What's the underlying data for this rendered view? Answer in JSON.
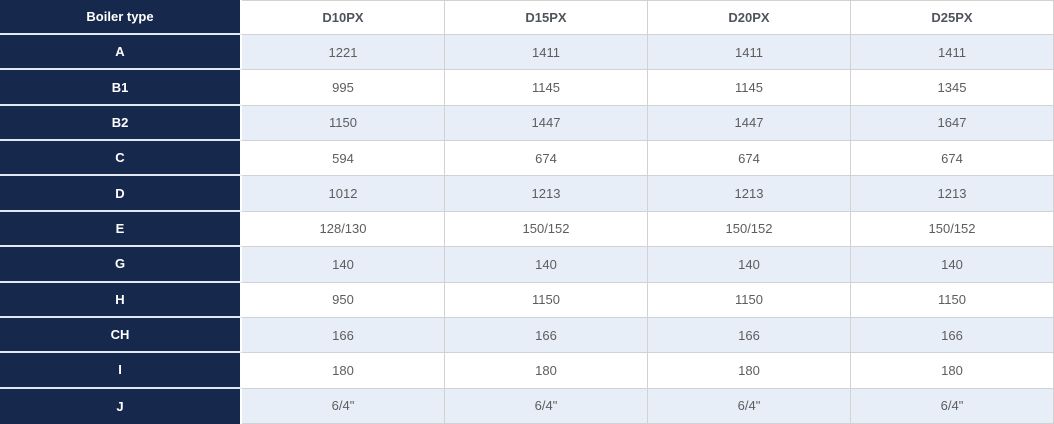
{
  "table": {
    "corner_header": "Boiler type",
    "columns": [
      "D10PX",
      "D15PX",
      "D20PX",
      "D25PX"
    ],
    "rows": [
      {
        "label": "A",
        "values": [
          "1221",
          "1411",
          "1411",
          "1411"
        ]
      },
      {
        "label": "B1",
        "values": [
          "995",
          "1145",
          "1145",
          "1345"
        ]
      },
      {
        "label": "B2",
        "values": [
          "1150",
          "1447",
          "1447",
          "1647"
        ]
      },
      {
        "label": "C",
        "values": [
          "594",
          "674",
          "674",
          "674"
        ]
      },
      {
        "label": "D",
        "values": [
          "1012",
          "1213",
          "1213",
          "1213"
        ]
      },
      {
        "label": "E",
        "values": [
          "128/130",
          "150/152",
          "150/152",
          "150/152"
        ]
      },
      {
        "label": "G",
        "values": [
          "140",
          "140",
          "140",
          "140"
        ]
      },
      {
        "label": "H",
        "values": [
          "950",
          "1150",
          "1150",
          "1150"
        ]
      },
      {
        "label": "CH",
        "values": [
          "166",
          "166",
          "166",
          "166"
        ]
      },
      {
        "label": "I",
        "values": [
          "180",
          "180",
          "180",
          "180"
        ]
      },
      {
        "label": "J",
        "values": [
          "6/4\"",
          "6/4\"",
          "6/4\"",
          "6/4\""
        ]
      }
    ],
    "colors": {
      "label_column_bg": "#16294d",
      "label_text": "#ffffff",
      "alt_row_bg": "#e8eef8",
      "row_bg": "#ffffff",
      "grid_border": "#d2d2d2",
      "label_separator": "#e2e9f4",
      "data_text": "#5d5d5d",
      "column_header_text": "#4f545c"
    }
  }
}
